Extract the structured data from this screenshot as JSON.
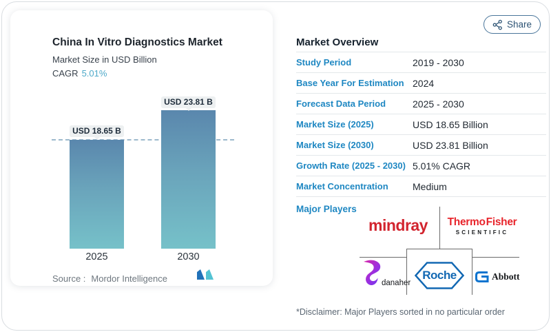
{
  "share": {
    "label": "Share"
  },
  "chart_card": {
    "title": "China In Vitro Diagnostics Market",
    "subtitle": "Market Size in USD Billion",
    "cagr_label": "CAGR",
    "cagr_value": "5.01%",
    "source_label": "Source :",
    "source_value": "Mordor Intelligence"
  },
  "chart_data": {
    "type": "bar",
    "categories": [
      "2025",
      "2030"
    ],
    "values": [
      18.65,
      23.81
    ],
    "value_labels": [
      "USD 18.65 B",
      "USD 23.81 B"
    ],
    "title": "China In Vitro Diagnostics Market",
    "ylabel": "Market Size in USD Billion",
    "ylim": [
      0,
      27
    ],
    "grid": false,
    "dashed_reference_value": 18.65,
    "bar_gradient": [
      "#5a87ad",
      "#76c1c9"
    ],
    "dash_color": "#9cb9cc"
  },
  "overview": {
    "heading": "Market Overview",
    "rows": [
      {
        "label": "Study Period",
        "value": "2019 - 2030"
      },
      {
        "label": "Base Year For Estimation",
        "value": "2024"
      },
      {
        "label": "Forecast Data Period",
        "value": "2025 - 2030"
      },
      {
        "label": "Market Size (2025)",
        "value": "USD 18.65 Billion"
      },
      {
        "label": "Market Size (2030)",
        "value": "USD 23.81 Billion"
      },
      {
        "label": "Growth Rate (2025 - 2030)",
        "value": "5.01% CAGR"
      },
      {
        "label": "Market Concentration",
        "value": "Medium"
      }
    ],
    "major_players_label": "Major Players",
    "disclaimer": "*Disclaimer: Major Players sorted in no particular order"
  },
  "logos": {
    "mindray_text": "mindray",
    "thermo_line1": "Thermo Fisher",
    "thermo_line2": "SCIENTIFIC",
    "danaher_text": "danaher",
    "roche_text": "Roche",
    "abbott_text": "Abbott"
  },
  "colors": {
    "label_blue": "#1e87c2",
    "cagr_teal": "#4da9c9",
    "mindray_red": "#d2242e",
    "thermo_red": "#e8252c",
    "roche_blue": "#1268b3",
    "abbott_blue": "#0e74cf",
    "share_navy": "#2d5374"
  }
}
